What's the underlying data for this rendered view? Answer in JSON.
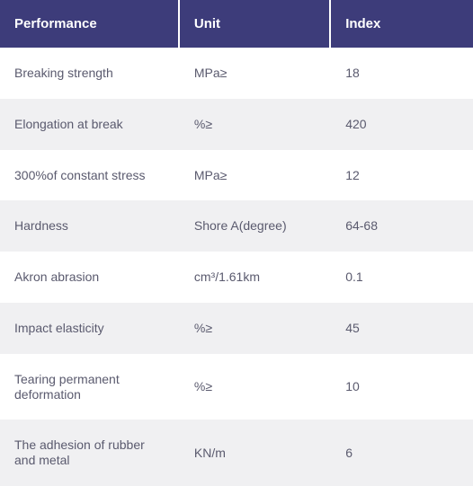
{
  "table": {
    "header_bg": "#3d3c7a",
    "header_text_color": "#ffffff",
    "row_even_bg": "#ffffff",
    "row_odd_bg": "#f0f0f2",
    "cell_text_color": "#5a5a6e",
    "columns": [
      {
        "label": "Performance"
      },
      {
        "label": "Unit"
      },
      {
        "label": "Index"
      }
    ],
    "rows": [
      {
        "performance": "Breaking strength",
        "unit": "MPa≥",
        "index": "18"
      },
      {
        "performance": "Elongation at break",
        "unit": "%≥",
        "index": "420"
      },
      {
        "performance": "300%of constant stress",
        "unit": "MPa≥",
        "index": "12"
      },
      {
        "performance": "Hardness",
        "unit": "Shore A(degree)",
        "index": "64-68"
      },
      {
        "performance": "Akron abrasion",
        "unit": "cm³/1.61km",
        "index": "0.1"
      },
      {
        "performance": "Impact elasticity",
        "unit": "%≥",
        "index": "45"
      },
      {
        "performance": "Tearing permanent deformation",
        "unit": "%≥",
        "index": "10"
      },
      {
        "performance": "The adhesion of rubber and metal",
        "unit": "KN/m",
        "index": "6"
      }
    ]
  }
}
